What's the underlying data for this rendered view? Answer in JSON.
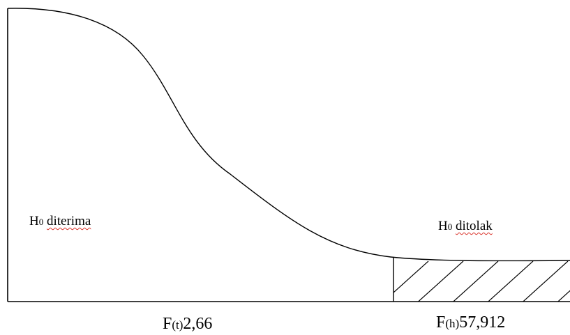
{
  "regions": {
    "accepted": {
      "symbol": "H",
      "subscript": "0",
      "word": "diterima"
    },
    "rejected": {
      "symbol": "H",
      "subscript": "0",
      "word": "ditolak"
    }
  },
  "axis_labels": {
    "f_table": {
      "prefix": "F",
      "sub": "(t)",
      "value": "2,66"
    },
    "f_count": {
      "prefix": "F",
      "sub": "(h)",
      "value": "57,912"
    }
  },
  "colors": {
    "line": "#000000",
    "spellcheck_underline": "#d9332b",
    "background": "#ffffff"
  }
}
